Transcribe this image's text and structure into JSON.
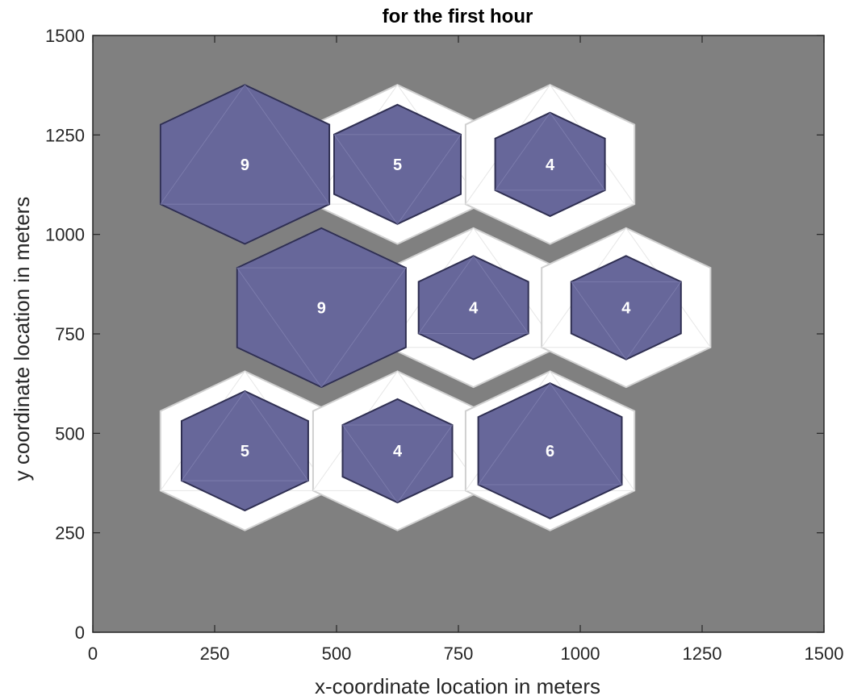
{
  "chart_data": {
    "type": "hexagonal-cell-map",
    "title": "for the first hour",
    "xlabel": "x-coordinate location in meters",
    "ylabel": "y coordinate location in meters",
    "xlim": [
      0,
      1500
    ],
    "ylim": [
      0,
      1500
    ],
    "xticks": [
      0,
      250,
      500,
      750,
      1000,
      1250,
      1500
    ],
    "yticks": [
      0,
      250,
      500,
      750,
      1000,
      1250,
      1500
    ],
    "cell_outer_radius": 200,
    "cells": [
      {
        "x": 312,
        "y": 1176,
        "value": 9,
        "fill_radius": 200
      },
      {
        "x": 625,
        "y": 1176,
        "value": 5,
        "fill_radius": 150
      },
      {
        "x": 938,
        "y": 1176,
        "value": 4,
        "fill_radius": 130
      },
      {
        "x": 469,
        "y": 816,
        "value": 9,
        "fill_radius": 200
      },
      {
        "x": 781,
        "y": 816,
        "value": 4,
        "fill_radius": 130
      },
      {
        "x": 1094,
        "y": 816,
        "value": 4,
        "fill_radius": 130
      },
      {
        "x": 312,
        "y": 456,
        "value": 5,
        "fill_radius": 150
      },
      {
        "x": 625,
        "y": 456,
        "value": 4,
        "fill_radius": 130
      },
      {
        "x": 938,
        "y": 456,
        "value": 6,
        "fill_radius": 170
      }
    ],
    "colors": {
      "background": "#808080",
      "cell_area": "#ffffff",
      "cell_outline": "#d0d0d0",
      "fill": "#67679a",
      "fill_edge": "#2f2f52"
    }
  }
}
